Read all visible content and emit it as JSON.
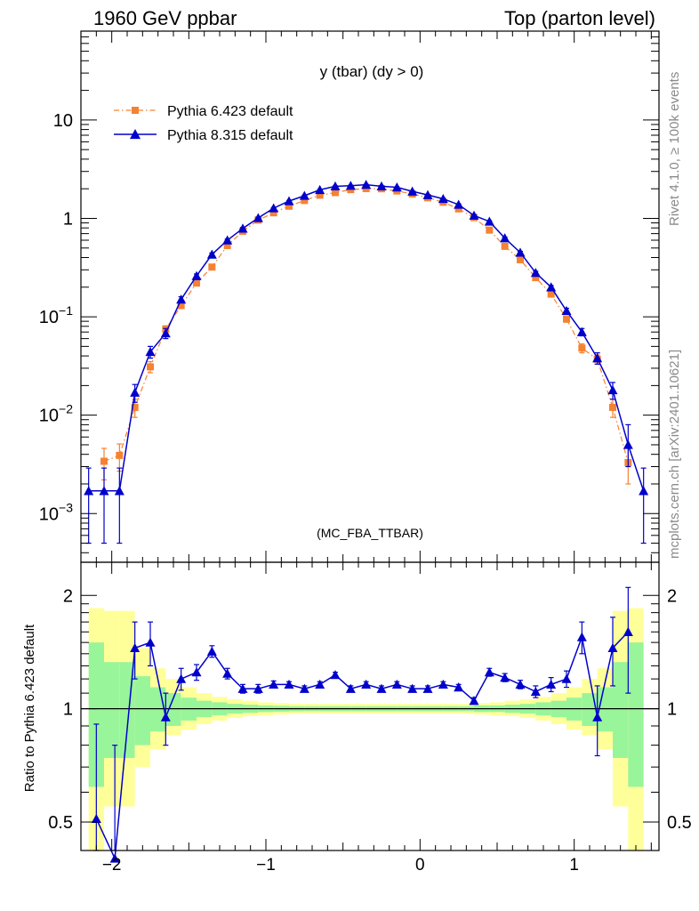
{
  "header": {
    "left": "1960 GeV ppbar",
    "right": "Top (parton level)"
  },
  "plot_title": "y (tbar) (dy > 0)",
  "analysis_tag": "(MC_FBA_TTBAR)",
  "side_labels": {
    "rivet": "Rivet 4.1.0, ≥ 100k events",
    "source": "mcplots.cern.ch [arXiv:2401.10621]"
  },
  "ratio_ylabel": "Ratio to Pythia 6.423 default",
  "colors": {
    "pythia6": "#f58232",
    "pythia8": "#0000cc",
    "band_inner": "#99f599",
    "band_outer": "#ffff99"
  },
  "chart_data": [
    {
      "type": "line",
      "panel": "main",
      "title": "y (tbar) (dy > 0)",
      "yscale": "log",
      "xlim": [
        -2.2,
        1.55
      ],
      "ylim": [
        0.00032,
        80
      ],
      "x_ticks": [
        -2,
        -1,
        0,
        1
      ],
      "y_ticks": [
        {
          "value": 0.001,
          "base": "10",
          "exp": "−3"
        },
        {
          "value": 0.01,
          "base": "10",
          "exp": "−2"
        },
        {
          "value": 0.1,
          "base": "10",
          "exp": "−1"
        },
        {
          "value": 1,
          "base": "1",
          "exp": ""
        },
        {
          "value": 10,
          "base": "10",
          "exp": ""
        }
      ],
      "legend_position": "top-left",
      "series": [
        {
          "name": "Pythia 6.423 default",
          "marker": "square",
          "style": "dash-dot",
          "x": [
            -2.05,
            -1.95,
            -1.85,
            -1.75,
            -1.65,
            -1.55,
            -1.45,
            -1.35,
            -1.25,
            -1.15,
            -1.05,
            -0.95,
            -0.85,
            -0.75,
            -0.65,
            -0.55,
            -0.45,
            -0.35,
            -0.25,
            -0.15,
            -0.05,
            0.05,
            0.15,
            0.25,
            0.35,
            0.45,
            0.55,
            0.65,
            0.75,
            0.85,
            0.95,
            1.05,
            1.15,
            1.25,
            1.35
          ],
          "y": [
            0.0034,
            0.0039,
            0.012,
            0.031,
            0.075,
            0.13,
            0.22,
            0.32,
            0.53,
            0.74,
            0.96,
            1.14,
            1.33,
            1.52,
            1.72,
            1.83,
            1.96,
            2.01,
            2.0,
            1.9,
            1.77,
            1.62,
            1.46,
            1.25,
            1.02,
            0.76,
            0.52,
            0.38,
            0.25,
            0.17,
            0.095,
            0.048,
            0.037,
            0.012,
            0.0033
          ],
          "err_low": [
            0.0012,
            0.0012,
            0.0025,
            0.004,
            0.006,
            0.008,
            0.01,
            0.012,
            0.014,
            0.016,
            0.018,
            0.02,
            0.02,
            0.02,
            0.02,
            0.02,
            0.02,
            0.02,
            0.02,
            0.02,
            0.02,
            0.02,
            0.02,
            0.02,
            0.02,
            0.018,
            0.015,
            0.012,
            0.01,
            0.008,
            0.007,
            0.005,
            0.004,
            0.0025,
            0.0013
          ],
          "err_high": [
            0.0012,
            0.0012,
            0.0025,
            0.004,
            0.006,
            0.008,
            0.01,
            0.012,
            0.014,
            0.016,
            0.018,
            0.02,
            0.02,
            0.02,
            0.02,
            0.02,
            0.02,
            0.02,
            0.02,
            0.02,
            0.02,
            0.02,
            0.02,
            0.02,
            0.02,
            0.018,
            0.015,
            0.012,
            0.01,
            0.008,
            0.007,
            0.005,
            0.004,
            0.0025,
            0.0013
          ]
        },
        {
          "name": "Pythia 8.315 default",
          "marker": "triangle",
          "style": "solid",
          "x": [
            -2.15,
            -2.05,
            -1.95,
            -1.85,
            -1.75,
            -1.65,
            -1.55,
            -1.45,
            -1.35,
            -1.25,
            -1.15,
            -1.05,
            -0.95,
            -0.85,
            -0.75,
            -0.65,
            -0.55,
            -0.45,
            -0.35,
            -0.25,
            -0.15,
            -0.05,
            0.05,
            0.15,
            0.25,
            0.35,
            0.45,
            0.55,
            0.65,
            0.75,
            0.85,
            0.95,
            1.05,
            1.15,
            1.25,
            1.35,
            1.45
          ],
          "y": [
            0.0017,
            0.0017,
            0.0017,
            0.017,
            0.044,
            0.068,
            0.15,
            0.26,
            0.43,
            0.6,
            0.79,
            1.01,
            1.27,
            1.5,
            1.7,
            1.95,
            2.12,
            2.15,
            2.2,
            2.12,
            2.07,
            1.88,
            1.73,
            1.58,
            1.38,
            1.07,
            0.93,
            0.63,
            0.45,
            0.28,
            0.2,
            0.115,
            0.07,
            0.038,
            0.018,
            0.005,
            0.0017
          ],
          "err_low": [
            0.0012,
            0.0012,
            0.0012,
            0.0035,
            0.006,
            0.008,
            0.01,
            0.012,
            0.015,
            0.016,
            0.018,
            0.02,
            0.02,
            0.02,
            0.02,
            0.02,
            0.02,
            0.02,
            0.02,
            0.02,
            0.02,
            0.02,
            0.02,
            0.02,
            0.02,
            0.02,
            0.018,
            0.015,
            0.012,
            0.01,
            0.008,
            0.007,
            0.006,
            0.005,
            0.0035,
            0.002,
            0.0012
          ],
          "err_high": [
            0.0012,
            0.0012,
            0.0012,
            0.0035,
            0.006,
            0.008,
            0.01,
            0.012,
            0.015,
            0.016,
            0.018,
            0.02,
            0.02,
            0.02,
            0.02,
            0.02,
            0.02,
            0.02,
            0.02,
            0.02,
            0.02,
            0.02,
            0.02,
            0.02,
            0.02,
            0.02,
            0.018,
            0.015,
            0.012,
            0.01,
            0.008,
            0.007,
            0.006,
            0.005,
            0.0035,
            0.003,
            0.0012
          ]
        }
      ]
    },
    {
      "type": "line",
      "panel": "ratio",
      "ylabel": "Ratio to Pythia 6.423 default",
      "yscale": "log",
      "xlim": [
        -2.2,
        1.55
      ],
      "ylim": [
        0.42,
        2.45
      ],
      "x_ticks": [
        -2,
        -1,
        0,
        1
      ],
      "y_ticks": [
        0.5,
        1,
        2
      ],
      "reference_line": 1,
      "bands": {
        "edges": [
          -2.15,
          -2.05,
          -1.95,
          -1.85,
          -1.75,
          -1.65,
          -1.55,
          -1.45,
          -1.35,
          -1.25,
          -1.15,
          -1.05,
          -0.95,
          -0.85,
          -0.75,
          -0.65,
          -0.55,
          -0.45,
          -0.35,
          -0.25,
          -0.15,
          -0.05,
          0.05,
          0.15,
          0.25,
          0.35,
          0.45,
          0.55,
          0.65,
          0.75,
          0.85,
          0.95,
          1.05,
          1.15,
          1.25,
          1.35,
          1.45
        ],
        "inner_low": [
          0.62,
          0.74,
          0.74,
          0.8,
          0.87,
          0.9,
          0.93,
          0.95,
          0.96,
          0.97,
          0.975,
          0.98,
          0.982,
          0.985,
          0.985,
          0.985,
          0.985,
          0.985,
          0.985,
          0.985,
          0.985,
          0.985,
          0.985,
          0.985,
          0.985,
          0.98,
          0.98,
          0.975,
          0.97,
          0.96,
          0.95,
          0.93,
          0.9,
          0.87,
          0.74,
          0.62
        ],
        "inner_high": [
          1.5,
          1.33,
          1.33,
          1.22,
          1.14,
          1.1,
          1.07,
          1.05,
          1.04,
          1.03,
          1.025,
          1.02,
          1.018,
          1.015,
          1.015,
          1.015,
          1.015,
          1.015,
          1.015,
          1.015,
          1.015,
          1.015,
          1.015,
          1.015,
          1.015,
          1.02,
          1.02,
          1.025,
          1.03,
          1.04,
          1.05,
          1.07,
          1.1,
          1.14,
          1.33,
          1.5
        ],
        "outer_low": [
          0.38,
          0.55,
          0.55,
          0.7,
          0.78,
          0.85,
          0.88,
          0.91,
          0.93,
          0.945,
          0.955,
          0.96,
          0.965,
          0.97,
          0.97,
          0.97,
          0.97,
          0.97,
          0.97,
          0.97,
          0.97,
          0.97,
          0.97,
          0.97,
          0.97,
          0.965,
          0.96,
          0.955,
          0.945,
          0.93,
          0.91,
          0.88,
          0.85,
          0.78,
          0.55,
          0.38
        ],
        "outer_high": [
          1.85,
          1.82,
          1.82,
          1.45,
          1.28,
          1.2,
          1.14,
          1.1,
          1.075,
          1.06,
          1.05,
          1.04,
          1.035,
          1.03,
          1.03,
          1.03,
          1.03,
          1.03,
          1.03,
          1.03,
          1.03,
          1.03,
          1.03,
          1.03,
          1.03,
          1.035,
          1.04,
          1.05,
          1.06,
          1.075,
          1.1,
          1.14,
          1.2,
          1.28,
          1.82,
          1.85
        ]
      },
      "series": [
        {
          "name": "Pythia 8.315 / Pythia 6.423",
          "marker": "triangle",
          "x": [
            -2.1,
            -1.98,
            -1.85,
            -1.75,
            -1.65,
            -1.55,
            -1.45,
            -1.35,
            -1.25,
            -1.15,
            -1.05,
            -0.95,
            -0.85,
            -0.75,
            -0.65,
            -0.55,
            -0.45,
            -0.35,
            -0.25,
            -0.15,
            -0.05,
            0.05,
            0.15,
            0.25,
            0.35,
            0.45,
            0.55,
            0.65,
            0.75,
            0.85,
            0.95,
            1.05,
            1.15,
            1.25,
            1.35
          ],
          "y": [
            0.51,
            0.4,
            1.45,
            1.5,
            0.95,
            1.2,
            1.25,
            1.42,
            1.24,
            1.13,
            1.13,
            1.16,
            1.16,
            1.13,
            1.16,
            1.23,
            1.13,
            1.16,
            1.13,
            1.16,
            1.13,
            1.13,
            1.16,
            1.14,
            1.05,
            1.25,
            1.21,
            1.16,
            1.11,
            1.16,
            1.2,
            1.55,
            0.95,
            1.45,
            1.6
          ],
          "err": [
            0.4,
            0.4,
            0.25,
            0.2,
            0.15,
            0.08,
            0.06,
            0.05,
            0.04,
            0.03,
            0.03,
            0.025,
            0.02,
            0.02,
            0.02,
            0.02,
            0.02,
            0.02,
            0.02,
            0.02,
            0.02,
            0.02,
            0.02,
            0.02,
            0.02,
            0.03,
            0.03,
            0.03,
            0.04,
            0.05,
            0.06,
            0.15,
            0.2,
            0.3,
            0.5
          ]
        }
      ]
    }
  ]
}
